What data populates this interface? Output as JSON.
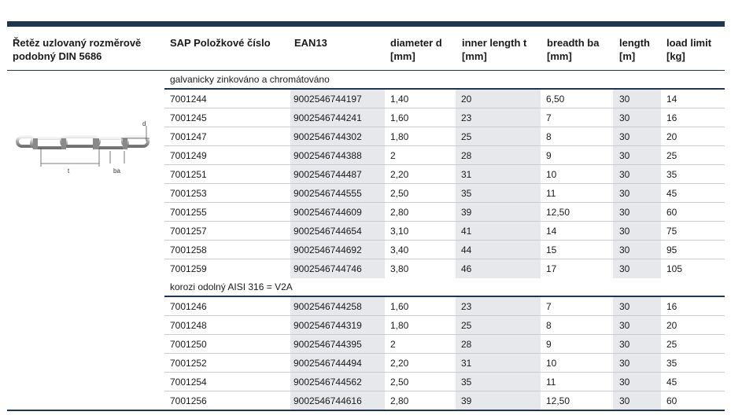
{
  "table": {
    "headers": {
      "product": "Řetěz uzlovaný rozměrově podobný DIN 5686",
      "product_line1": "Řetěz uzlovaný rozměrově",
      "product_line2": "podobný DIN 5686",
      "sap": "SAP Položkové číslo",
      "ean": "EAN13",
      "diameter_line1": "diameter d",
      "diameter_line2": "[mm]",
      "inner_line1": "inner length t",
      "inner_line2": "[mm]",
      "breadth_line1": "breadth ba",
      "breadth_line2": "[mm]",
      "length_line1": "length",
      "length_line2": "[m]",
      "load_line1": "load limit",
      "load_line2": "[kg]"
    },
    "diagram_labels": {
      "d": "d",
      "t": "t",
      "ba": "ba"
    },
    "groups": [
      {
        "label": "galvanicky zinkováno a chromátováno",
        "rows": [
          {
            "sap": "7001244",
            "ean": "9002546744197",
            "d": "1,40",
            "t": "20",
            "ba": "6,50",
            "length": "30",
            "load": "14"
          },
          {
            "sap": "7001245",
            "ean": "9002546744241",
            "d": "1,60",
            "t": "23",
            "ba": "7",
            "length": "30",
            "load": "16"
          },
          {
            "sap": "7001247",
            "ean": "9002546744302",
            "d": "1,80",
            "t": "25",
            "ba": "8",
            "length": "30",
            "load": "20"
          },
          {
            "sap": "7001249",
            "ean": "9002546744388",
            "d": "2",
            "t": "28",
            "ba": "9",
            "length": "30",
            "load": "25"
          },
          {
            "sap": "7001251",
            "ean": "9002546744487",
            "d": "2,20",
            "t": "31",
            "ba": "10",
            "length": "30",
            "load": "35"
          },
          {
            "sap": "7001253",
            "ean": "9002546744555",
            "d": "2,50",
            "t": "35",
            "ba": "11",
            "length": "30",
            "load": "45"
          },
          {
            "sap": "7001255",
            "ean": "9002546744609",
            "d": "2,80",
            "t": "39",
            "ba": "12,50",
            "length": "30",
            "load": "60"
          },
          {
            "sap": "7001257",
            "ean": "9002546744654",
            "d": "3,10",
            "t": "41",
            "ba": "14",
            "length": "30",
            "load": "75"
          },
          {
            "sap": "7001258",
            "ean": "9002546744692",
            "d": "3,40",
            "t": "44",
            "ba": "15",
            "length": "30",
            "load": "95"
          },
          {
            "sap": "7001259",
            "ean": "9002546744746",
            "d": "3,80",
            "t": "46",
            "ba": "17",
            "length": "30",
            "load": "105"
          }
        ]
      },
      {
        "label": "korozi odolný AISI 316 = V2A",
        "rows": [
          {
            "sap": "7001246",
            "ean": "9002546744258",
            "d": "1,60",
            "t": "23",
            "ba": "7",
            "length": "30",
            "load": "16"
          },
          {
            "sap": "7001248",
            "ean": "9002546744319",
            "d": "1,80",
            "t": "25",
            "ba": "8",
            "length": "30",
            "load": "20"
          },
          {
            "sap": "7001250",
            "ean": "9002546744395",
            "d": "2",
            "t": "28",
            "ba": "9",
            "length": "30",
            "load": "25"
          },
          {
            "sap": "7001252",
            "ean": "9002546744494",
            "d": "2,20",
            "t": "31",
            "ba": "10",
            "length": "30",
            "load": "35"
          },
          {
            "sap": "7001254",
            "ean": "9002546744562",
            "d": "2,50",
            "t": "35",
            "ba": "11",
            "length": "30",
            "load": "45"
          },
          {
            "sap": "7001256",
            "ean": "9002546744616",
            "d": "2,80",
            "t": "39",
            "ba": "12,50",
            "length": "30",
            "load": "60"
          }
        ]
      }
    ]
  }
}
